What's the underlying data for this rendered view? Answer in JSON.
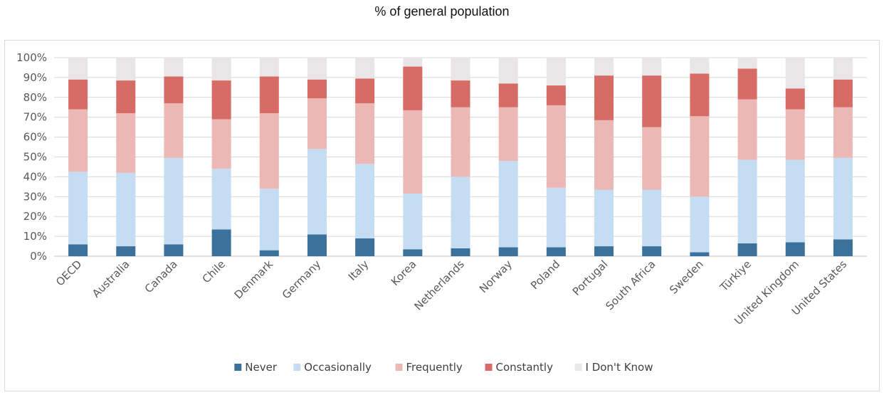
{
  "chart_data": {
    "type": "bar",
    "stacked": true,
    "title": "% of general population",
    "xlabel": "",
    "ylabel": "",
    "ylim": [
      0,
      100
    ],
    "yticks": [
      "0%",
      "10%",
      "20%",
      "30%",
      "40%",
      "50%",
      "60%",
      "70%",
      "80%",
      "90%",
      "100%"
    ],
    "grid": true,
    "legend_position": "bottom",
    "categories": [
      "OECD",
      "Australia",
      "Canada",
      "Chile",
      "Denmark",
      "Germany",
      "Italy",
      "Korea",
      "Netherlands",
      "Norway",
      "Poland",
      "Portugal",
      "South Africa",
      "Sweden",
      "Türkiye",
      "United Kingdom",
      "United States"
    ],
    "series": [
      {
        "name": "Never",
        "color": "#3b719a",
        "values": [
          6,
          5,
          6,
          13.5,
          3,
          11,
          9,
          3.5,
          4,
          4.5,
          4.5,
          5,
          5,
          2,
          6.5,
          7,
          8.5
        ]
      },
      {
        "name": "Occasionally",
        "color": "#c5ddf2",
        "values": [
          36.5,
          37,
          43.5,
          30.5,
          31,
          43,
          37.5,
          28,
          36,
          43.5,
          30,
          28.5,
          28.5,
          28,
          42,
          41.5,
          41
        ]
      },
      {
        "name": "Frequently",
        "color": "#ecb8b6",
        "values": [
          31.5,
          30,
          27.5,
          25,
          38,
          25.5,
          30.5,
          42,
          35,
          27,
          41.5,
          35,
          31.5,
          40.5,
          30.5,
          25.5,
          25.5
        ]
      },
      {
        "name": "Constantly",
        "color": "#d76c66",
        "values": [
          15,
          16.5,
          13.5,
          19.5,
          18.5,
          9.5,
          12.5,
          22,
          13.5,
          12,
          10,
          22.5,
          26,
          21.5,
          15.5,
          10.5,
          14
        ]
      },
      {
        "name": "I Don't Know",
        "color": "#e8e6e6",
        "values": [
          11,
          11.5,
          9.5,
          11.5,
          9.5,
          11,
          10.5,
          4.5,
          11.5,
          13,
          14,
          9,
          9,
          8,
          5.5,
          15.5,
          11
        ]
      }
    ]
  }
}
